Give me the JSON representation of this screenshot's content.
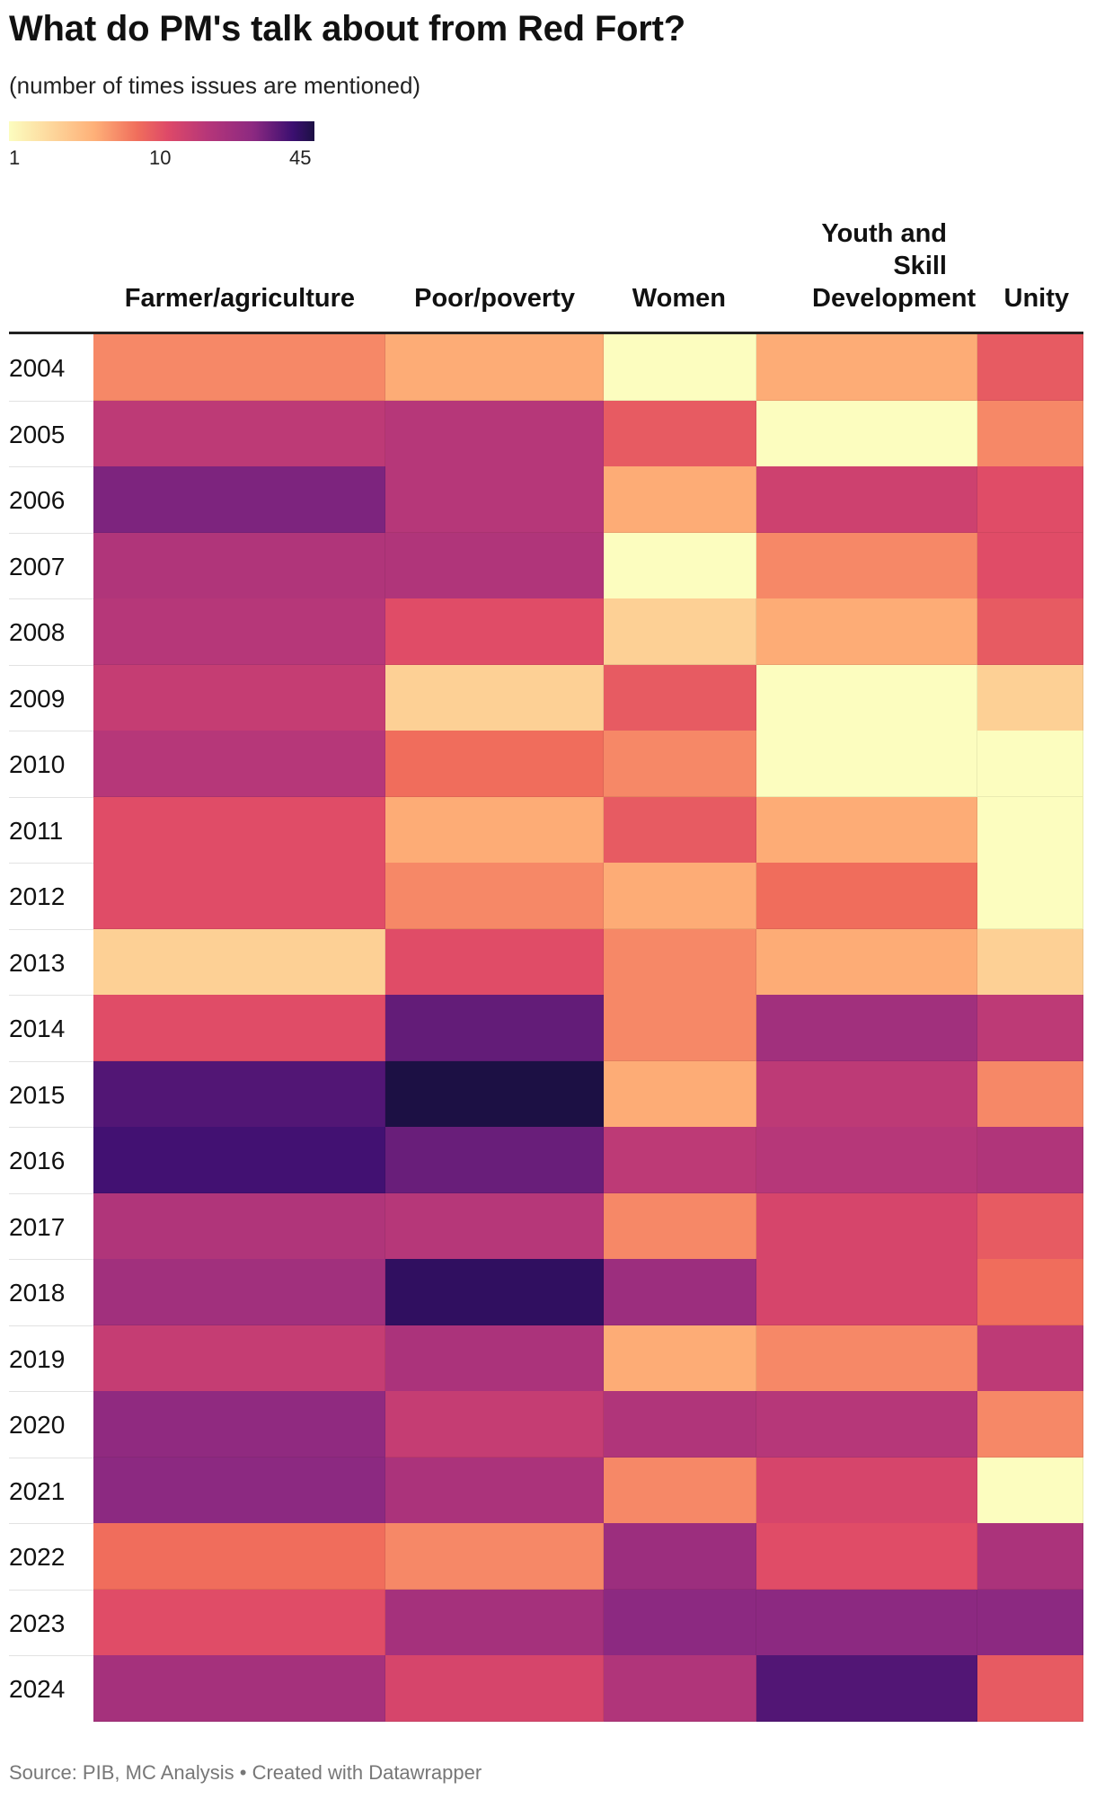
{
  "title": "What do PM's talk about from Red Fort?",
  "subtitle": "(number of times issues are mentioned)",
  "legend": {
    "min_label": "1",
    "mid_label": "10",
    "max_label": "45"
  },
  "source": "Source: PIB, MC Analysis • Created with Datawrapper",
  "chart_data": {
    "type": "heatmap",
    "title": "What do PM's talk about from Red Fort?",
    "subtitle": "(number of times issues are mentioned)",
    "color_scale": {
      "min": 1,
      "mid": 10,
      "max": 45,
      "colormap": "magma-reversed"
    },
    "columns": [
      "Farmer/agriculture",
      "Poor/poverty",
      "Women",
      "Youth and Skill Development",
      "Unity"
    ],
    "rows": [
      "2004",
      "2005",
      "2006",
      "2007",
      "2008",
      "2009",
      "2010",
      "2011",
      "2012",
      "2013",
      "2014",
      "2015",
      "2016",
      "2017",
      "2018",
      "2019",
      "2020",
      "2021",
      "2022",
      "2023",
      "2024"
    ],
    "values": [
      [
        4,
        3,
        1,
        3,
        6
      ],
      [
        11,
        12,
        6,
        1,
        4
      ],
      [
        23,
        12,
        3,
        9,
        7
      ],
      [
        13,
        13,
        1,
        4,
        7
      ],
      [
        12,
        7,
        2,
        3,
        6
      ],
      [
        10,
        2,
        6,
        1,
        2
      ],
      [
        12,
        5,
        4,
        1,
        1
      ],
      [
        7,
        3,
        6,
        3,
        1
      ],
      [
        7,
        4,
        3,
        5,
        1
      ],
      [
        2,
        7,
        4,
        3,
        2
      ],
      [
        7,
        27,
        4,
        16,
        11
      ],
      [
        30,
        45,
        3,
        11,
        4
      ],
      [
        33,
        26,
        11,
        12,
        13
      ],
      [
        13,
        12,
        4,
        8,
        6
      ],
      [
        16,
        38,
        17,
        8,
        5
      ],
      [
        10,
        14,
        3,
        4,
        11
      ],
      [
        20,
        10,
        13,
        12,
        4
      ],
      [
        21,
        14,
        4,
        8,
        1
      ],
      [
        5,
        4,
        17,
        7,
        14
      ],
      [
        7,
        15,
        21,
        21,
        21
      ],
      [
        15,
        8,
        13,
        30,
        6
      ]
    ]
  }
}
